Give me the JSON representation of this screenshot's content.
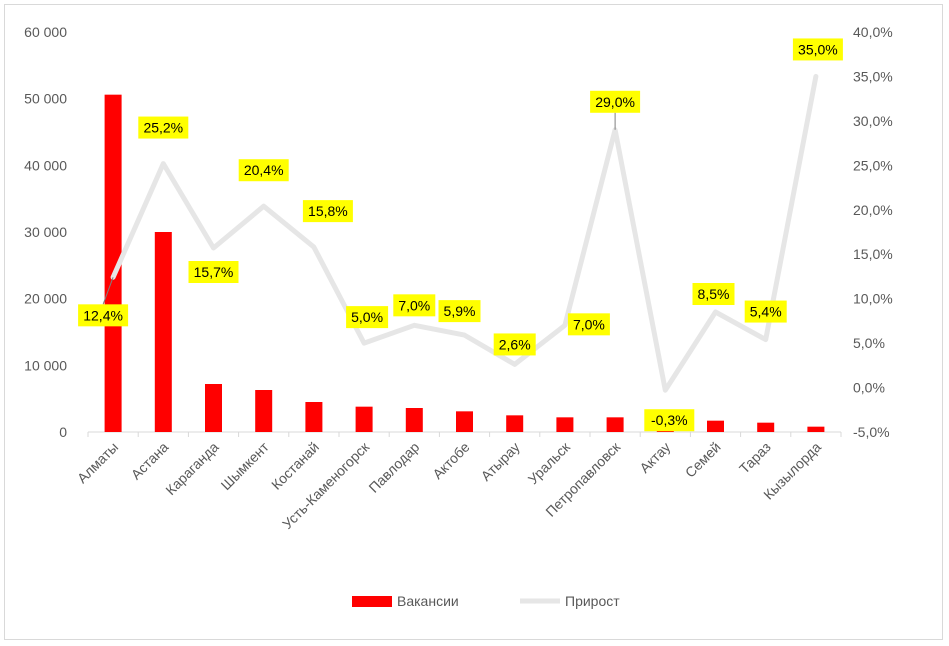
{
  "chart_data": {
    "type": "bar",
    "categories": [
      "Алматы",
      "Астана",
      "Караганда",
      "Шымкент",
      "Костанай",
      "Усть-Каменогорск",
      "Павлодар",
      "Актобе",
      "Атырау",
      "Уральск",
      "Петропавловск",
      "Актау",
      "Семей",
      "Тараз",
      "Кызылорда"
    ],
    "series": [
      {
        "name": "Вакансии",
        "type": "bar",
        "axis": "left",
        "color": "#ff0000",
        "values": [
          50600,
          30000,
          7200,
          6300,
          4500,
          3800,
          3600,
          3100,
          2500,
          2200,
          2200,
          1700,
          1700,
          1400,
          800
        ]
      },
      {
        "name": "Прирост",
        "type": "line",
        "axis": "right",
        "color": "#e6e6e6",
        "values": [
          12.4,
          25.2,
          15.7,
          20.4,
          15.8,
          5.0,
          7.0,
          5.9,
          2.6,
          7.0,
          29.0,
          -0.3,
          8.5,
          5.4,
          35.0
        ],
        "labels": [
          "12,4%",
          "25,2%",
          "15,7%",
          "20,4%",
          "15,8%",
          "5,0%",
          "7,0%",
          "5,9%",
          "2,6%",
          "7,0%",
          "29,0%",
          "-0,3%",
          "8,5%",
          "5,4%",
          "35,0%"
        ]
      }
    ],
    "y_left": {
      "min": 0,
      "max": 60000,
      "step": 10000,
      "tick_labels": [
        "0",
        "10 000",
        "20 000",
        "30 000",
        "40 000",
        "50 000",
        "60 000"
      ]
    },
    "y_right": {
      "min": -5,
      "max": 40,
      "step": 5,
      "tick_labels": [
        "-5,0%",
        "0,0%",
        "5,0%",
        "10,0%",
        "15,0%",
        "20,0%",
        "25,0%",
        "30,0%",
        "35,0%",
        "40,0%"
      ]
    },
    "legend": {
      "position": "bottom",
      "entries": [
        "Вакансии",
        "Прирост"
      ]
    },
    "label_background": "#ffff00",
    "grid": false,
    "title": ""
  }
}
